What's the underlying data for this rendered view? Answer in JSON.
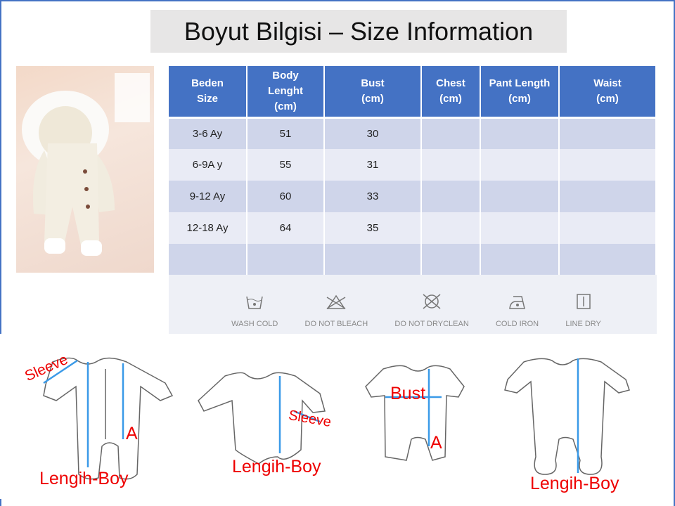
{
  "title": "Boyut Bilgisi – Size Information",
  "table": {
    "headers": [
      "Beden Size",
      "Body Lenght (cm)",
      "Bust (cm)",
      "Chest (cm)",
      "Pant Length (cm)",
      "Waist (cm)"
    ],
    "header_lines": [
      [
        "Beden",
        "Size"
      ],
      [
        "Body",
        "Lenght",
        "(cm)"
      ],
      [
        "Bust",
        "(cm)"
      ],
      [
        "Chest",
        "(cm)"
      ],
      [
        "Pant Length",
        "(cm)"
      ],
      [
        "Waist",
        "(cm)"
      ]
    ],
    "rows": [
      [
        "3-6 Ay",
        "51",
        "30",
        "",
        "",
        ""
      ],
      [
        "6-9A y",
        "55",
        "31",
        "",
        "",
        ""
      ],
      [
        "9-12 Ay",
        "60",
        "33",
        "",
        "",
        ""
      ],
      [
        "12-18 Ay",
        "64",
        "35",
        "",
        "",
        ""
      ],
      [
        "",
        "",
        "",
        "",
        "",
        ""
      ]
    ]
  },
  "care": [
    {
      "label": "WASH COLD",
      "icon": "wash-cold-icon"
    },
    {
      "label": "DO NOT BLEACH",
      "icon": "do-not-bleach-icon"
    },
    {
      "label": "DO NOT DRYCLEAN",
      "icon": "do-not-dryclean-icon"
    },
    {
      "label": "COLD IRON",
      "icon": "cold-iron-icon"
    },
    {
      "label": "LINE DRY",
      "icon": "line-dry-icon"
    }
  ],
  "diagram_labels": {
    "sleeve1": "Sleeve",
    "a1": "A",
    "length1": "Lengih-Boy",
    "sleeve2": "Sleeve",
    "length2": "Lengih-Boy",
    "bust": "Bust",
    "a3": "A",
    "length4": "Lengih-Boy"
  },
  "colors": {
    "header": "#4472c4",
    "row_odd": "#cfd5ea",
    "row_even": "#e9ebf5",
    "label": "#e00000",
    "measure": "#3a9ae8"
  }
}
